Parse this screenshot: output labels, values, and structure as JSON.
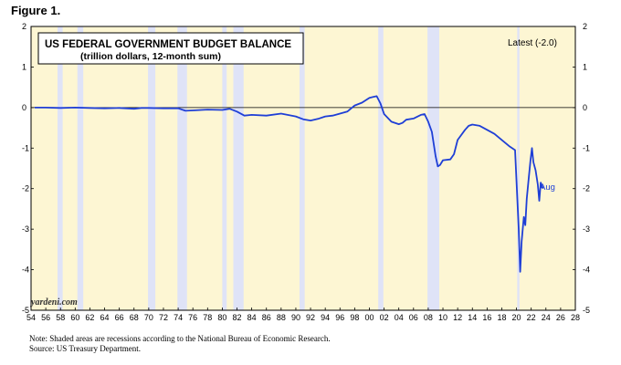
{
  "figure_label": "Figure 1.",
  "watermark": "yardeni.com",
  "note": "Note: Shaded areas are recessions according to the National Bureau of Economic Research.",
  "source": "Source: US Treasury Department.",
  "colors": {
    "plot_background": "#fdf6d3",
    "recession": "#dfe3f7",
    "line": "#1f3fd6",
    "zero_line": "#000000"
  },
  "chart_data": {
    "type": "line",
    "title": "US FEDERAL GOVERNMENT BUDGET BALANCE",
    "subtitle": "(trillion dollars, 12-month sum)",
    "latest_label": "Latest (-2.0)",
    "end_label": "Aug",
    "xlim": [
      1954,
      2028
    ],
    "ylim": [
      -5,
      2
    ],
    "y_ticks": [
      2,
      1,
      0,
      -1,
      -2,
      -3,
      -4,
      -5
    ],
    "x_ticks": [
      1954,
      1956,
      1958,
      1960,
      1962,
      1964,
      1966,
      1968,
      1970,
      1972,
      1974,
      1976,
      1978,
      1980,
      1982,
      1984,
      1986,
      1988,
      1990,
      1992,
      1994,
      1996,
      1998,
      2000,
      2002,
      2004,
      2006,
      2008,
      2010,
      2012,
      2014,
      2016,
      2018,
      2020,
      2022,
      2024,
      2026,
      2028
    ],
    "x_tick_labels": [
      "54",
      "56",
      "58",
      "60",
      "62",
      "64",
      "66",
      "68",
      "70",
      "72",
      "74",
      "76",
      "78",
      "80",
      "82",
      "84",
      "86",
      "88",
      "90",
      "92",
      "94",
      "96",
      "98",
      "00",
      "02",
      "04",
      "06",
      "08",
      "10",
      "12",
      "14",
      "16",
      "18",
      "20",
      "22",
      "24",
      "26",
      "28"
    ],
    "recessions": [
      [
        1957.6,
        1958.3
      ],
      [
        1960.3,
        1961.1
      ],
      [
        1969.9,
        1970.9
      ],
      [
        1973.9,
        1975.2
      ],
      [
        1980.0,
        1980.6
      ],
      [
        1981.5,
        1982.9
      ],
      [
        1990.5,
        1991.2
      ],
      [
        2001.2,
        2001.9
      ],
      [
        2007.9,
        2009.5
      ],
      [
        2020.1,
        2020.4
      ]
    ],
    "series": [
      {
        "x": [
          1954.5,
          1956,
          1958,
          1960,
          1962,
          1964,
          1966,
          1968,
          1969,
          1970,
          1972,
          1974,
          1975,
          1976,
          1978,
          1980,
          1981,
          1982,
          1983,
          1984,
          1986,
          1988,
          1990,
          1991,
          1992,
          1993,
          1994,
          1995,
          1996,
          1997,
          1998,
          1999,
          2000,
          2000.5,
          2001,
          2001.5,
          2002,
          2003,
          2004,
          2004.5,
          2005,
          2006,
          2007,
          2007.5,
          2008,
          2008.5,
          2009,
          2009.3,
          2009.6,
          2010,
          2011,
          2011.5,
          2012,
          2013,
          2013.5,
          2014,
          2015,
          2016,
          2017,
          2018,
          2019,
          2019.8,
          2020.3,
          2020.5,
          2020.7,
          2021,
          2021.2,
          2021.4,
          2021.6,
          2021.9,
          2022.1,
          2022.3,
          2022.6,
          2022.9,
          2023.1,
          2023.3,
          2023.6
        ],
        "y": [
          0.0,
          0.0,
          -0.01,
          0.0,
          -0.01,
          -0.02,
          -0.01,
          -0.03,
          -0.01,
          -0.01,
          -0.02,
          -0.02,
          -0.08,
          -0.07,
          -0.05,
          -0.06,
          -0.03,
          -0.1,
          -0.2,
          -0.18,
          -0.2,
          -0.15,
          -0.22,
          -0.29,
          -0.32,
          -0.28,
          -0.22,
          -0.2,
          -0.15,
          -0.1,
          0.05,
          0.12,
          0.24,
          0.26,
          0.28,
          0.1,
          -0.16,
          -0.35,
          -0.41,
          -0.38,
          -0.3,
          -0.27,
          -0.18,
          -0.16,
          -0.35,
          -0.6,
          -1.2,
          -1.45,
          -1.42,
          -1.3,
          -1.28,
          -1.15,
          -0.8,
          -0.55,
          -0.45,
          -0.42,
          -0.45,
          -0.55,
          -0.65,
          -0.8,
          -0.95,
          -1.05,
          -3.0,
          -4.05,
          -3.3,
          -2.7,
          -2.9,
          -2.25,
          -1.85,
          -1.3,
          -1.0,
          -1.35,
          -1.55,
          -1.9,
          -2.3,
          -1.85,
          -2.0
        ]
      }
    ]
  }
}
